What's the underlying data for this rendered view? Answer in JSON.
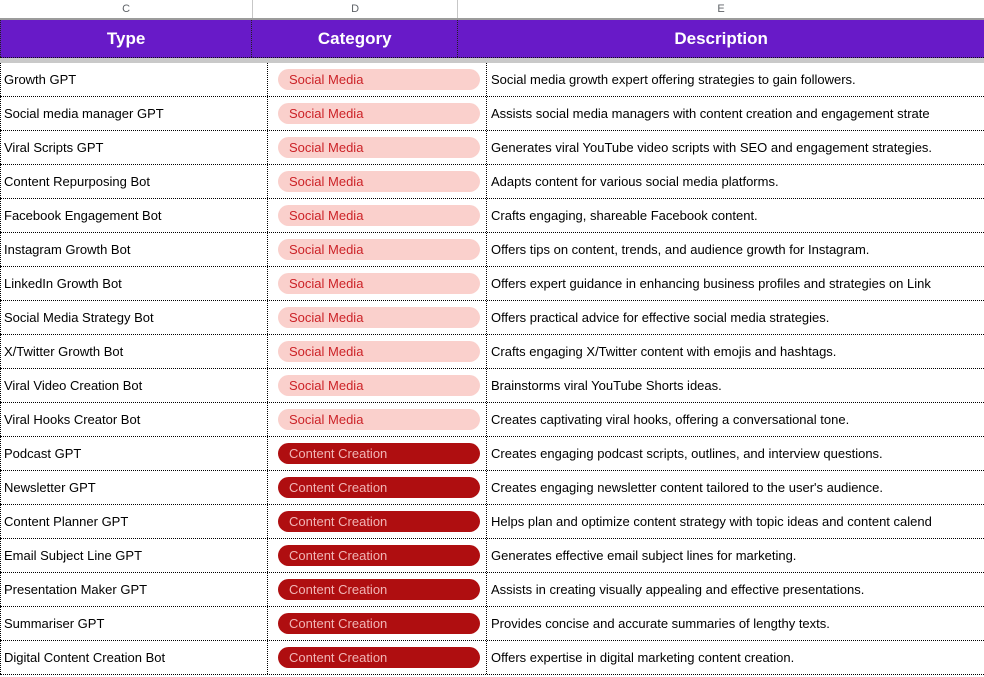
{
  "columns": {
    "letters": [
      "C",
      "D",
      "E"
    ]
  },
  "header": {
    "type_label": "Type",
    "category_label": "Category",
    "description_label": "Description"
  },
  "colors": {
    "header_bg": "#681ac8",
    "header_text": "#ffffff",
    "social_chip_bg": "#fad0cc",
    "social_chip_text": "#cc2227",
    "content_chip_bg": "#af0e10",
    "content_chip_text": "#f0b5b5",
    "freeze_bar": "#c9c9c9"
  },
  "categories": {
    "social": "Social Media",
    "content": "Content Creation"
  },
  "rows": [
    {
      "type": "Growth GPT",
      "category": "Social Media",
      "category_kind": "social",
      "description": "Social media growth expert offering strategies to gain followers."
    },
    {
      "type": "Social media manager GPT",
      "category": "Social Media",
      "category_kind": "social",
      "description": "Assists social media managers with content creation and engagement strate"
    },
    {
      "type": "Viral Scripts GPT",
      "category": "Social Media",
      "category_kind": "social",
      "description": "Generates viral YouTube video scripts with SEO and engagement strategies."
    },
    {
      "type": "Content Repurposing Bot",
      "category": "Social Media",
      "category_kind": "social",
      "description": "Adapts content for various social media platforms."
    },
    {
      "type": "Facebook Engagement Bot",
      "category": "Social Media",
      "category_kind": "social",
      "description": "Crafts engaging, shareable Facebook content."
    },
    {
      "type": "Instagram Growth Bot",
      "category": "Social Media",
      "category_kind": "social",
      "description": "Offers tips on content, trends, and audience growth for Instagram."
    },
    {
      "type": "LinkedIn Growth Bot",
      "category": "Social Media",
      "category_kind": "social",
      "description": "Offers expert guidance in enhancing business profiles and strategies on Link"
    },
    {
      "type": "Social Media Strategy Bot",
      "category": "Social Media",
      "category_kind": "social",
      "description": "Offers practical advice for effective social media strategies."
    },
    {
      "type": "X/Twitter Growth Bot",
      "category": "Social Media",
      "category_kind": "social",
      "description": "Crafts engaging X/Twitter content with emojis and hashtags."
    },
    {
      "type": "Viral Video Creation Bot",
      "category": "Social Media",
      "category_kind": "social",
      "description": "Brainstorms viral YouTube Shorts ideas."
    },
    {
      "type": "Viral Hooks Creator Bot",
      "category": "Social Media",
      "category_kind": "social",
      "description": "Creates captivating viral hooks, offering a conversational tone."
    },
    {
      "type": "Podcast GPT",
      "category": "Content Creation",
      "category_kind": "content",
      "description": "Creates engaging podcast scripts, outlines, and interview questions."
    },
    {
      "type": "Newsletter GPT",
      "category": "Content Creation",
      "category_kind": "content",
      "description": "Creates engaging newsletter content tailored to the user's audience."
    },
    {
      "type": "Content Planner GPT",
      "category": "Content Creation",
      "category_kind": "content",
      "description": "Helps plan and optimize content strategy with topic ideas and content calend"
    },
    {
      "type": "Email Subject Line GPT",
      "category": "Content Creation",
      "category_kind": "content",
      "description": "Generates effective email subject lines for marketing."
    },
    {
      "type": "Presentation Maker GPT",
      "category": "Content Creation",
      "category_kind": "content",
      "description": "Assists in creating visually appealing and effective presentations."
    },
    {
      "type": "Summariser GPT",
      "category": "Content Creation",
      "category_kind": "content",
      "description": "Provides concise and accurate summaries of lengthy texts."
    },
    {
      "type": "Digital Content Creation Bot",
      "category": "Content Creation",
      "category_kind": "content",
      "description": "Offers expertise in digital marketing content creation."
    }
  ]
}
